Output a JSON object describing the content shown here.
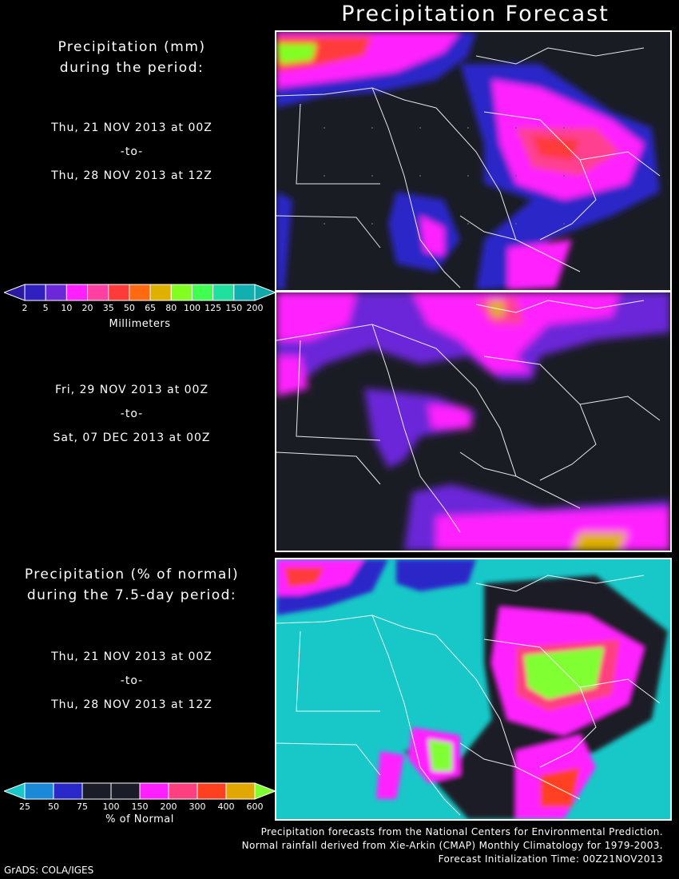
{
  "title": "Precipitation Forecast",
  "section1": {
    "heading_line1": "Precipitation (mm)",
    "heading_line2": "during the period:",
    "period1": {
      "start": "Thu, 21 NOV 2013 at 00Z",
      "sep": "-to-",
      "end": "Thu, 28 NOV 2013 at 12Z"
    },
    "period2": {
      "start": "Fri, 29 NOV 2013 at 00Z",
      "sep": "-to-",
      "end": "Sat, 07 DEC 2013 at 00Z"
    }
  },
  "section2": {
    "heading_line1": "Precipitation (% of normal)",
    "heading_line2": "during the 7.5-day period:",
    "period": {
      "start": "Thu, 21 NOV 2013 at 00Z",
      "sep": "-to-",
      "end": "Thu, 28 NOV 2013 at 12Z"
    }
  },
  "legend_mm": {
    "unit": "Millimeters",
    "ticks": [
      "2",
      "5",
      "10",
      "20",
      "35",
      "50",
      "65",
      "80",
      "100",
      "125",
      "150",
      "200"
    ],
    "colors": [
      "#3020c0",
      "#6a28d8",
      "#ff20ff",
      "#ff40a0",
      "#ff3a3a",
      "#ff6a10",
      "#e0b000",
      "#80ff20",
      "#40ff50",
      "#20e0a0",
      "#10b0b0"
    ],
    "end_left_color": "#2a1aa0",
    "end_right_color": "#10a8a8"
  },
  "legend_pct": {
    "unit": "% of Normal",
    "ticks": [
      "25",
      "50",
      "75",
      "100",
      "150",
      "200",
      "300",
      "400",
      "600"
    ],
    "colors": [
      "#1a8ad8",
      "#2a28c8",
      "#1a1c28",
      "#1a1c28",
      "#ff20ff",
      "#ff4080",
      "#ff4020",
      "#e0a800"
    ],
    "end_left_color": "#18c8c8",
    "end_right_color": "#80ff30"
  },
  "map_colors": {
    "background": "#1a1c24",
    "normal_background": "#18c8c8",
    "blue": "#2a28c8",
    "purple": "#6a28d8",
    "magenta": "#ff20ff",
    "pink": "#ff4090",
    "red": "#ff3a3a",
    "orange": "#ff6a10",
    "yellow": "#e0b000",
    "green": "#80ff20",
    "border_line": "#ffffff"
  },
  "credits": {
    "line1": "Precipitation forecasts from the National Centers for Environmental Prediction.",
    "line2": "Normal rainfall derived from Xie-Arkin (CMAP) Monthly Climatology for 1979-2003.",
    "line3": "Forecast Initialization Time: 00Z21NOV2013"
  },
  "footer": "GrADS: COLA/IGES"
}
